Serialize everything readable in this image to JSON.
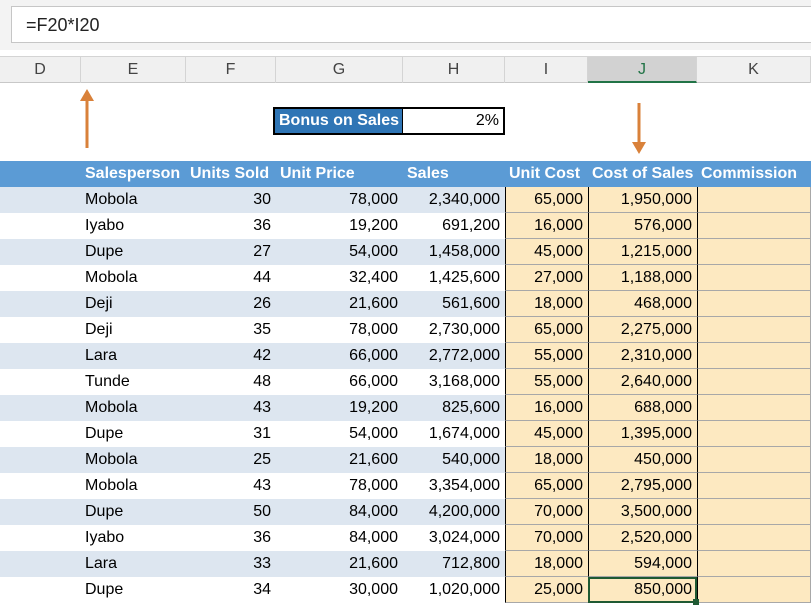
{
  "formula_bar": {
    "formula": "=F20*I20"
  },
  "columns": [
    "D",
    "E",
    "F",
    "G",
    "H",
    "I",
    "J",
    "K"
  ],
  "selected_column": "J",
  "bonus": {
    "label": "Bonus on Sales",
    "value": "2%"
  },
  "table": {
    "headers": [
      "Salesperson",
      "Units Sold",
      "Unit Price",
      "Sales",
      "Unit Cost",
      "Cost of Sales",
      "Commission"
    ],
    "rows": [
      [
        "Mobola",
        "30",
        "78,000",
        "2,340,000",
        "65,000",
        "1,950,000",
        ""
      ],
      [
        "Iyabo",
        "36",
        "19,200",
        "691,200",
        "16,000",
        "576,000",
        ""
      ],
      [
        "Dupe",
        "27",
        "54,000",
        "1,458,000",
        "45,000",
        "1,215,000",
        ""
      ],
      [
        "Mobola",
        "44",
        "32,400",
        "1,425,600",
        "27,000",
        "1,188,000",
        ""
      ],
      [
        "Deji",
        "26",
        "21,600",
        "561,600",
        "18,000",
        "468,000",
        ""
      ],
      [
        "Deji",
        "35",
        "78,000",
        "2,730,000",
        "65,000",
        "2,275,000",
        ""
      ],
      [
        "Lara",
        "42",
        "66,000",
        "2,772,000",
        "55,000",
        "2,310,000",
        ""
      ],
      [
        "Tunde",
        "48",
        "66,000",
        "3,168,000",
        "55,000",
        "2,640,000",
        ""
      ],
      [
        "Mobola",
        "43",
        "19,200",
        "825,600",
        "16,000",
        "688,000",
        ""
      ],
      [
        "Dupe",
        "31",
        "54,000",
        "1,674,000",
        "45,000",
        "1,395,000",
        ""
      ],
      [
        "Mobola",
        "25",
        "21,600",
        "540,000",
        "18,000",
        "450,000",
        ""
      ],
      [
        "Mobola",
        "43",
        "78,000",
        "3,354,000",
        "65,000",
        "2,795,000",
        ""
      ],
      [
        "Dupe",
        "50",
        "84,000",
        "4,200,000",
        "70,000",
        "3,500,000",
        ""
      ],
      [
        "Iyabo",
        "36",
        "84,000",
        "3,024,000",
        "70,000",
        "2,520,000",
        ""
      ],
      [
        "Lara",
        "33",
        "21,600",
        "712,800",
        "18,000",
        "594,000",
        ""
      ],
      [
        "Dupe",
        "34",
        "30,000",
        "1,020,000",
        "25,000",
        "850,000",
        ""
      ]
    ]
  },
  "colors": {
    "header_bg": "#5b9bd5",
    "band_bg": "#dde6f0",
    "cost_bg": "#fde9c1",
    "arrow": "#d9813a",
    "bonus_label_bg": "#2f75b5"
  },
  "icons": {
    "left_arrow": "up-arrow-icon",
    "right_arrow": "down-arrow-icon"
  }
}
